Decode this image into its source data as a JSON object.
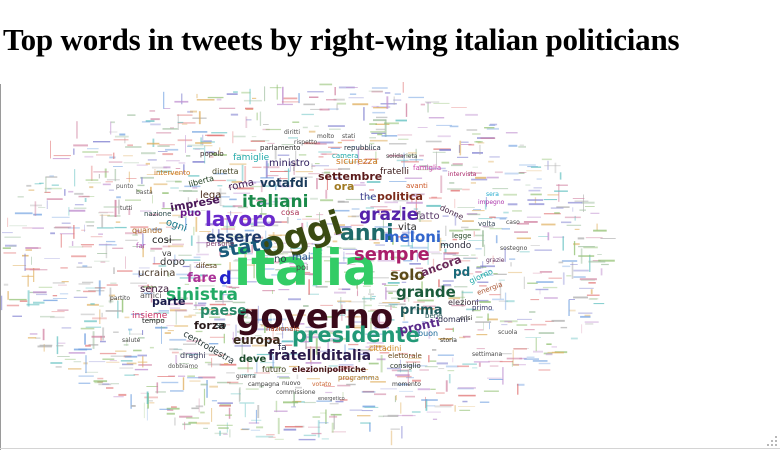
{
  "title": "Top words in tweets by right-wing italian politicians",
  "cloud": {
    "words": [
      {
        "text": "italia",
        "color": "#33cc66"
      },
      {
        "text": "governo",
        "color": "#3a0a1a"
      },
      {
        "text": "oggi",
        "color": "#3a4a12"
      },
      {
        "text": "presidente",
        "color": "#229977"
      },
      {
        "text": "anni",
        "color": "#1f6a6a"
      },
      {
        "text": "lavoro",
        "color": "#6a2acc"
      },
      {
        "text": "sempre",
        "color": "#aa1f6a"
      },
      {
        "text": "stato",
        "color": "#1a5a7a"
      },
      {
        "text": "italiani",
        "color": "#1a8a4a"
      },
      {
        "text": "grazie",
        "color": "#5522aa"
      },
      {
        "text": "sinistra",
        "color": "#22aa66"
      },
      {
        "text": "meloni",
        "color": "#3366cc"
      },
      {
        "text": "essere",
        "color": "#1f3a6a"
      },
      {
        "text": "grande",
        "color": "#1a5a3a"
      },
      {
        "text": "solo",
        "color": "#5a4a1a"
      },
      {
        "text": "fratelliditalia",
        "color": "#2a1a4a"
      },
      {
        "text": "paese",
        "color": "#2a8a6a"
      },
      {
        "text": "fare",
        "color": "#aa3399"
      },
      {
        "text": "d",
        "color": "#2222cc"
      },
      {
        "text": "prima",
        "color": "#1f5a5a"
      },
      {
        "text": "pronti",
        "color": "#5a2a8a"
      },
      {
        "text": "votafdi",
        "color": "#1a3a5a"
      },
      {
        "text": "settembre",
        "color": "#5a1a1a"
      },
      {
        "text": "europa",
        "color": "#3a2a1a"
      },
      {
        "text": "forza",
        "color": "#2a1a1a"
      },
      {
        "text": "ora",
        "color": "#a07a22"
      },
      {
        "text": "pd",
        "color": "#1a6a7a"
      },
      {
        "text": "ancora",
        "color": "#6a2a5a"
      },
      {
        "text": "politica",
        "color": "#7a2a1a"
      },
      {
        "text": "imprese",
        "color": "#4a1a5a"
      },
      {
        "text": "dopo",
        "color": "#333333"
      },
      {
        "text": "ucraina",
        "color": "#4a3a2a"
      },
      {
        "text": "fatto",
        "color": "#5a3a6a"
      },
      {
        "text": "vita",
        "color": "#2a2a2a"
      },
      {
        "text": "senza",
        "color": "#3a1a3a"
      },
      {
        "text": "parte",
        "color": "#1a1a4a"
      },
      {
        "text": "cosi",
        "color": "#1a1a1a"
      },
      {
        "text": "roma",
        "color": "#3a1a4a"
      },
      {
        "text": "lega",
        "color": "#4a2a1a"
      },
      {
        "text": "ogni",
        "color": "#1a7a8a"
      },
      {
        "text": "puo",
        "color": "#6a1a8a"
      },
      {
        "text": "the",
        "color": "#3a3a8a"
      },
      {
        "text": "mondo",
        "color": "#2a2a3a"
      },
      {
        "text": "mai",
        "color": "#2a5a8a"
      },
      {
        "text": "no",
        "color": "#2a3a4a"
      },
      {
        "text": "deve",
        "color": "#1a4a2a"
      },
      {
        "text": "centrodestra",
        "color": "#2a3a3a"
      },
      {
        "text": "elezionipolitiche",
        "color": "#4a1a1a"
      },
      {
        "text": "futuro",
        "color": "#3a3a1a"
      },
      {
        "text": "cittadini",
        "color": "#cc8822"
      },
      {
        "text": "buon",
        "color": "#1a6a9a"
      },
      {
        "text": "ministro",
        "color": "#2a1a5a"
      },
      {
        "text": "famiglie",
        "color": "#22aaaa"
      },
      {
        "text": "sicurezza",
        "color": "#cc7722"
      },
      {
        "text": "fratelli",
        "color": "#3a1a1a"
      },
      {
        "text": "elezioni",
        "color": "#3a2a3a"
      },
      {
        "text": "domani",
        "color": "#2a2a4a"
      },
      {
        "text": "nazionale",
        "color": "#aa4422"
      },
      {
        "text": "insieme",
        "color": "#cc3366"
      },
      {
        "text": "amici",
        "color": "#5a5a5a"
      },
      {
        "text": "draghi",
        "color": "#3a3a5a"
      },
      {
        "text": "diretta",
        "color": "#4a4a2a"
      },
      {
        "text": "liberta",
        "color": "#1a3a1a"
      },
      {
        "text": "persone",
        "color": "#7a3a6a"
      },
      {
        "text": "difesa",
        "color": "#5a3a1a"
      },
      {
        "text": "nazione",
        "color": "#2a4a4a"
      },
      {
        "text": "programma",
        "color": "#aa7722"
      },
      {
        "text": "elettorale",
        "color": "#6a4a1a"
      },
      {
        "text": "consiglio",
        "color": "#2a3a2a"
      },
      {
        "text": "parlamento",
        "color": "#2a2a2a"
      },
      {
        "text": "repubblica",
        "color": "#1a2a3a"
      },
      {
        "text": "quando",
        "color": "#aa6622"
      },
      {
        "text": "volta",
        "color": "#3a4a5a"
      },
      {
        "text": "giorno",
        "color": "#22aaaa"
      },
      {
        "text": "energia",
        "color": "#aa5533"
      },
      {
        "text": "donne",
        "color": "#4a2a4a"
      },
      {
        "text": "legge",
        "color": "#2a4a2a"
      },
      {
        "text": "avanti",
        "color": "#cc5522"
      },
      {
        "text": "famiglia",
        "color": "#cc44aa"
      },
      {
        "text": "popolo",
        "color": "#3a2a2a"
      },
      {
        "text": "intervento",
        "color": "#cc7722"
      },
      {
        "text": "bene",
        "color": "#2a5a5a"
      },
      {
        "text": "crisi",
        "color": "#1a1a1a"
      },
      {
        "text": "storia",
        "color": "#2a2a2a"
      },
      {
        "text": "guerra",
        "color": "#4a4a4a"
      },
      {
        "text": "momento",
        "color": "#3a3a3a"
      },
      {
        "text": "nuovo",
        "color": "#3a3a3a"
      },
      {
        "text": "campagna",
        "color": "#3a3a3a"
      },
      {
        "text": "votato",
        "color": "#cc6633"
      },
      {
        "text": "camera",
        "color": "#22aaaa"
      },
      {
        "text": "tempo",
        "color": "#1a1a1a"
      },
      {
        "text": "poi",
        "color": "#4a4a4a"
      },
      {
        "text": "so",
        "color": "#1a3a3a"
      },
      {
        "text": "fa",
        "color": "#1a1a3a"
      },
      {
        "text": "va",
        "color": "#3a3a3a"
      },
      {
        "text": "far",
        "color": "#aa44aa"
      },
      {
        "text": "primo",
        "color": "#3a3a6a"
      },
      {
        "text": "grazie",
        "color": "#5a2a5a"
      },
      {
        "text": "cosa",
        "color": "#aa3355"
      },
      {
        "text": "basta",
        "color": "#5a5a5a"
      },
      {
        "text": "punto",
        "color": "#5a5a5a"
      },
      {
        "text": "sera",
        "color": "#22aacc"
      },
      {
        "text": "impegno",
        "color": "#aa33aa"
      },
      {
        "text": "sostegno",
        "color": "#4a4a4a"
      },
      {
        "text": "solidarieta",
        "color": "#4a4a4a"
      },
      {
        "text": "rispetto",
        "color": "#4a4a4a"
      },
      {
        "text": "diritti",
        "color": "#4a4a4a"
      },
      {
        "text": "molto",
        "color": "#4a4a4a"
      },
      {
        "text": "stati",
        "color": "#4a4a4a"
      },
      {
        "text": "intervista",
        "color": "#aa2266"
      },
      {
        "text": "dobbiamo",
        "color": "#5a5a5a"
      },
      {
        "text": "commissione",
        "color": "#4a4a4a"
      },
      {
        "text": "energetico",
        "color": "#4a4a4a"
      },
      {
        "text": "settimana",
        "color": "#4a4a4a"
      },
      {
        "text": "partito",
        "color": "#4a4a4a"
      },
      {
        "text": "tutti",
        "color": "#4a4a4a"
      },
      {
        "text": "caso",
        "color": "#4a4a4a"
      },
      {
        "text": "scuola",
        "color": "#4a4a4a"
      },
      {
        "text": "salute",
        "color": "#4a4a4a"
      }
    ]
  }
}
